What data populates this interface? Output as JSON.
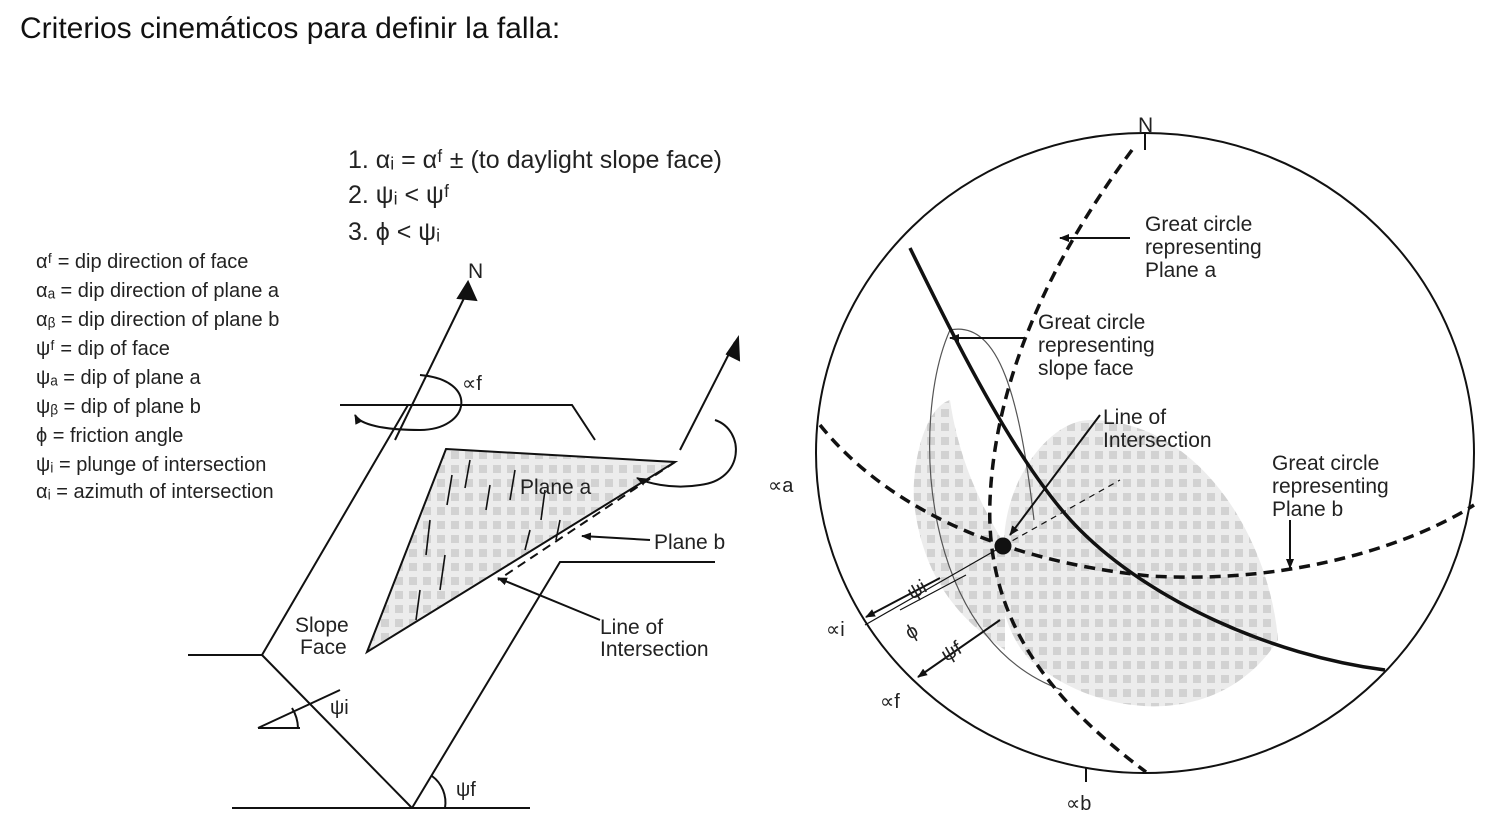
{
  "title": "Criterios cinemáticos para definir la falla:",
  "conditions": [
    "1. αᵢ = αᶠ ± (to daylight slope face)",
    "2. ψᵢ < ψᶠ",
    "3. ϕ < ψᵢ"
  ],
  "legend": [
    "αᶠ = dip direction of face",
    "αₐ = dip direction of plane a",
    "αᵦ = dip direction of plane b",
    "ψᶠ = dip of face",
    "ψₐ = dip of plane a",
    "ψᵦ = dip of plane b",
    "ϕ = friction angle",
    "ψᵢ = plunge of intersection",
    "αᵢ = azimuth of intersection"
  ],
  "block_diagram": {
    "north": "N",
    "alpha_f": "∝f",
    "plane_a": "Plane a",
    "plane_b": "Plane b",
    "slope_face": [
      "Slope",
      "Face"
    ],
    "line_of_intersection": [
      "Line of",
      "Intersection"
    ],
    "psi_i": "ψi",
    "psi_f": "ψf"
  },
  "stereonet": {
    "north": "N",
    "plane_a": [
      "Great circle",
      "representing",
      "Plane a"
    ],
    "slope_face": [
      "Great circle",
      "representing",
      "slope face"
    ],
    "intersection": [
      "Line of",
      "Intersection"
    ],
    "plane_b": [
      "Great circle",
      "representing",
      "Plane b"
    ],
    "alpha_a": "∝a",
    "alpha_i": "∝i",
    "alpha_f": "∝f",
    "alpha_b": "∝b",
    "psi_i": "ψi",
    "phi": "ϕ",
    "psi_f": "ψf"
  }
}
